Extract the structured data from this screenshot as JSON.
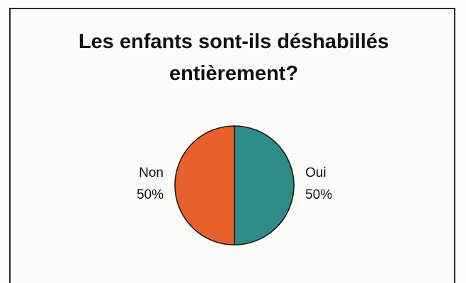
{
  "chart_data": {
    "type": "pie",
    "title_lines": [
      "Les enfants sont-ils déshabillés",
      "entièrement?"
    ],
    "slices": [
      {
        "label": "Oui",
        "value": 50,
        "value_label": "50%",
        "color": "#2e8b86",
        "label_side": "right"
      },
      {
        "label": "Non",
        "value": 50,
        "value_label": "50%",
        "color": "#e8612d",
        "label_side": "left"
      }
    ],
    "start_angle_deg": 0,
    "direction": "clockwise",
    "stroke_color": "#1a1a1a",
    "legend": "none"
  }
}
